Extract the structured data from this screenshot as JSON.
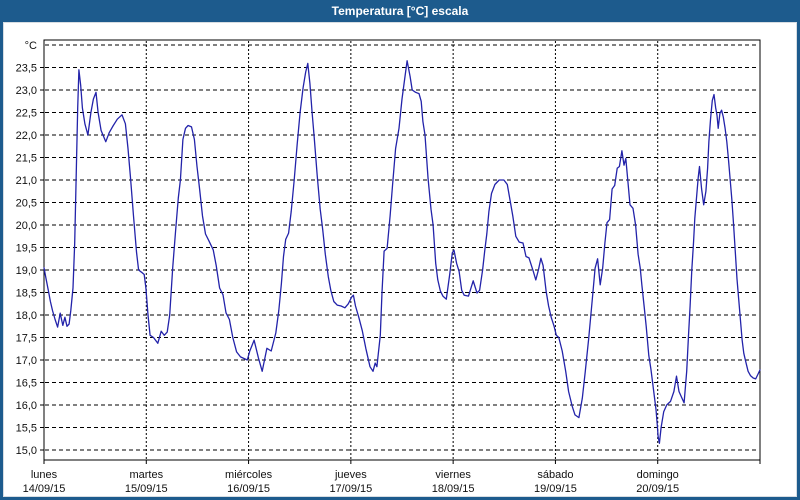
{
  "window": {
    "title": "Temperatura [°C] escala"
  },
  "colors": {
    "titlebar_bg": "#1d5b8d",
    "titlebar_text": "#ffffff",
    "panel_bg": "#ffffff",
    "frame": "#000000",
    "grid": "#000000",
    "axis_text": "#111111",
    "line": "#2323aa"
  },
  "chart_data": {
    "type": "line",
    "title": "Temperatura [°C] escala",
    "y_unit_label": "°C",
    "ylabel": "",
    "xlabel": "",
    "ylim": [
      14.8,
      24.1
    ],
    "y_gridlines": [
      24.0,
      23.5,
      23.0,
      22.5,
      22.0,
      21.5,
      21.0,
      20.5,
      20.0,
      19.5,
      19.0,
      18.5,
      18.0,
      17.5,
      17.0,
      16.5,
      16.0,
      15.5,
      15.0
    ],
    "y_ticks": [
      {
        "value": 23.5,
        "label": "23,5"
      },
      {
        "value": 23.0,
        "label": "23,0"
      },
      {
        "value": 22.5,
        "label": "22,5"
      },
      {
        "value": 22.0,
        "label": "22,0"
      },
      {
        "value": 21.5,
        "label": "21,5"
      },
      {
        "value": 21.0,
        "label": "21,0"
      },
      {
        "value": 20.5,
        "label": "20,5"
      },
      {
        "value": 20.0,
        "label": "20,0"
      },
      {
        "value": 19.5,
        "label": "19,5"
      },
      {
        "value": 19.0,
        "label": "19,0"
      },
      {
        "value": 18.5,
        "label": "18,5"
      },
      {
        "value": 18.0,
        "label": "18,0"
      },
      {
        "value": 17.5,
        "label": "17,5"
      },
      {
        "value": 17.0,
        "label": "17,0"
      },
      {
        "value": 16.5,
        "label": "16,5"
      },
      {
        "value": 16.0,
        "label": "16,0"
      },
      {
        "value": 15.5,
        "label": "15,5"
      },
      {
        "value": 15.0,
        "label": "15,0"
      }
    ],
    "x_days": [
      {
        "name": "lunes",
        "date": "14/09/15"
      },
      {
        "name": "martes",
        "date": "15/09/15"
      },
      {
        "name": "miércoles",
        "date": "16/09/15"
      },
      {
        "name": "jueves",
        "date": "17/09/15"
      },
      {
        "name": "viernes",
        "date": "18/09/15"
      },
      {
        "name": "sábado",
        "date": "19/09/15"
      },
      {
        "name": "domingo",
        "date": "20/09/15"
      }
    ],
    "x_hours_range": [
      0,
      168
    ],
    "grid": "dashed",
    "legend": "none",
    "series": [
      {
        "name": "Temperatura",
        "points": [
          [
            0,
            19.05
          ],
          [
            0.5,
            18.8
          ],
          [
            1,
            18.55
          ],
          [
            1.5,
            18.3
          ],
          [
            2,
            18.1
          ],
          [
            2.6,
            17.9
          ],
          [
            3.2,
            17.73
          ],
          [
            3.8,
            18.04
          ],
          [
            4.4,
            17.77
          ],
          [
            4.9,
            17.95
          ],
          [
            5.4,
            17.75
          ],
          [
            5.9,
            17.8
          ],
          [
            6.3,
            18.1
          ],
          [
            6.8,
            18.6
          ],
          [
            7.2,
            19.6
          ],
          [
            7.6,
            21.3
          ],
          [
            7.9,
            22.6
          ],
          [
            8.2,
            23.45
          ],
          [
            8.6,
            23.1
          ],
          [
            9,
            22.6
          ],
          [
            9.6,
            22.25
          ],
          [
            10.3,
            22.0
          ],
          [
            11,
            22.5
          ],
          [
            11.6,
            22.8
          ],
          [
            12.2,
            22.95
          ],
          [
            12.7,
            22.5
          ],
          [
            13.4,
            22.1
          ],
          [
            14.5,
            21.85
          ],
          [
            15.3,
            22.05
          ],
          [
            16.2,
            22.2
          ],
          [
            17.2,
            22.35
          ],
          [
            18.3,
            22.45
          ],
          [
            19.1,
            22.25
          ],
          [
            19.7,
            21.7
          ],
          [
            20.3,
            21.05
          ],
          [
            21,
            20.2
          ],
          [
            21.7,
            19.4
          ],
          [
            22.2,
            19.0
          ],
          [
            22.9,
            18.95
          ],
          [
            23.5,
            18.9
          ],
          [
            23.9,
            18.6
          ],
          [
            24.4,
            18.0
          ],
          [
            24.9,
            17.55
          ],
          [
            25.7,
            17.5
          ],
          [
            26.7,
            17.37
          ],
          [
            27.5,
            17.64
          ],
          [
            28.2,
            17.55
          ],
          [
            28.9,
            17.62
          ],
          [
            29.5,
            18.0
          ],
          [
            30.2,
            19.05
          ],
          [
            30.9,
            19.9
          ],
          [
            31.5,
            20.6
          ],
          [
            32,
            21.0
          ],
          [
            32.6,
            21.9
          ],
          [
            33.2,
            22.15
          ],
          [
            33.8,
            22.21
          ],
          [
            34.6,
            22.18
          ],
          [
            35.3,
            21.9
          ],
          [
            35.9,
            21.3
          ],
          [
            36.5,
            20.8
          ],
          [
            37.2,
            20.2
          ],
          [
            37.9,
            19.8
          ],
          [
            38.7,
            19.65
          ],
          [
            39.7,
            19.45
          ],
          [
            40.4,
            19.1
          ],
          [
            41.2,
            18.6
          ],
          [
            42,
            18.45
          ],
          [
            42.7,
            18.05
          ],
          [
            43.5,
            17.9
          ],
          [
            44.3,
            17.5
          ],
          [
            45.2,
            17.18
          ],
          [
            46.1,
            17.07
          ],
          [
            47,
            17.03
          ],
          [
            47.7,
            17.0
          ],
          [
            48.3,
            17.2
          ],
          [
            49.3,
            17.44
          ],
          [
            50.3,
            17.05
          ],
          [
            51.2,
            16.75
          ],
          [
            52.3,
            17.26
          ],
          [
            53.3,
            17.2
          ],
          [
            54.4,
            17.6
          ],
          [
            55.1,
            18.1
          ],
          [
            55.7,
            18.7
          ],
          [
            56.2,
            19.3
          ],
          [
            56.7,
            19.68
          ],
          [
            57.4,
            19.82
          ],
          [
            58,
            20.3
          ],
          [
            58.7,
            21.0
          ],
          [
            59.4,
            21.8
          ],
          [
            60.1,
            22.5
          ],
          [
            60.8,
            23.05
          ],
          [
            61.4,
            23.4
          ],
          [
            61.9,
            23.59
          ],
          [
            62.4,
            23.15
          ],
          [
            62.9,
            22.5
          ],
          [
            63.4,
            21.95
          ],
          [
            64.1,
            21.1
          ],
          [
            64.8,
            20.35
          ],
          [
            65.4,
            19.9
          ],
          [
            66,
            19.35
          ],
          [
            66.7,
            18.85
          ],
          [
            67.3,
            18.55
          ],
          [
            68,
            18.3
          ],
          [
            68.8,
            18.22
          ],
          [
            69.7,
            18.2
          ],
          [
            70.6,
            18.16
          ],
          [
            71.4,
            18.25
          ],
          [
            72.2,
            18.4
          ],
          [
            72.6,
            18.44
          ],
          [
            73.1,
            18.2
          ],
          [
            73.9,
            17.93
          ],
          [
            74.7,
            17.64
          ],
          [
            75.5,
            17.26
          ],
          [
            76.5,
            16.85
          ],
          [
            77.2,
            16.75
          ],
          [
            77.7,
            16.93
          ],
          [
            78.1,
            16.85
          ],
          [
            78.9,
            17.55
          ],
          [
            79.3,
            18.5
          ],
          [
            79.8,
            19.42
          ],
          [
            80.5,
            19.48
          ],
          [
            81.2,
            20.2
          ],
          [
            81.8,
            20.9
          ],
          [
            82.5,
            21.7
          ],
          [
            83.3,
            22.15
          ],
          [
            84,
            22.8
          ],
          [
            84.7,
            23.3
          ],
          [
            85.2,
            23.65
          ],
          [
            85.9,
            23.3
          ],
          [
            86.4,
            23.0
          ],
          [
            87.2,
            22.95
          ],
          [
            88,
            22.92
          ],
          [
            88.5,
            22.75
          ],
          [
            88.9,
            22.3
          ],
          [
            89.4,
            22.0
          ],
          [
            90.1,
            21.05
          ],
          [
            90.8,
            20.35
          ],
          [
            91.3,
            20.0
          ],
          [
            91.9,
            19.15
          ],
          [
            92.4,
            18.78
          ],
          [
            93,
            18.53
          ],
          [
            93.6,
            18.42
          ],
          [
            94.4,
            18.35
          ],
          [
            95.2,
            18.9
          ],
          [
            95.8,
            19.38
          ],
          [
            96.2,
            19.44
          ],
          [
            96.8,
            19.15
          ],
          [
            97.4,
            18.97
          ],
          [
            98,
            18.55
          ],
          [
            98.6,
            18.44
          ],
          [
            99.6,
            18.42
          ],
          [
            100.7,
            18.76
          ],
          [
            101.6,
            18.49
          ],
          [
            102.2,
            18.55
          ],
          [
            102.9,
            19.0
          ],
          [
            103.4,
            19.42
          ],
          [
            103.9,
            19.8
          ],
          [
            104.4,
            20.3
          ],
          [
            105,
            20.7
          ],
          [
            105.8,
            20.9
          ],
          [
            106.8,
            21.0
          ],
          [
            107.9,
            21.0
          ],
          [
            108.7,
            20.9
          ],
          [
            109.4,
            20.52
          ],
          [
            110,
            20.2
          ],
          [
            110.7,
            19.75
          ],
          [
            111.5,
            19.62
          ],
          [
            112.4,
            19.6
          ],
          [
            113.1,
            19.3
          ],
          [
            113.8,
            19.27
          ],
          [
            114.8,
            18.97
          ],
          [
            115.4,
            18.78
          ],
          [
            116,
            19.0
          ],
          [
            116.6,
            19.26
          ],
          [
            117.1,
            19.1
          ],
          [
            117.8,
            18.53
          ],
          [
            118.4,
            18.2
          ],
          [
            119,
            17.95
          ],
          [
            119.7,
            17.75
          ],
          [
            120.2,
            17.55
          ],
          [
            120.8,
            17.5
          ],
          [
            121.6,
            17.2
          ],
          [
            122.4,
            16.75
          ],
          [
            123.1,
            16.3
          ],
          [
            123.9,
            15.98
          ],
          [
            124.6,
            15.78
          ],
          [
            125.5,
            15.72
          ],
          [
            126.3,
            16.15
          ],
          [
            127,
            16.75
          ],
          [
            127.8,
            17.48
          ],
          [
            128.6,
            18.3
          ],
          [
            129.3,
            19.04
          ],
          [
            129.9,
            19.25
          ],
          [
            130.5,
            18.67
          ],
          [
            131.1,
            19.05
          ],
          [
            131.6,
            19.6
          ],
          [
            132.1,
            20.05
          ],
          [
            132.7,
            20.12
          ],
          [
            133.3,
            20.8
          ],
          [
            133.9,
            20.88
          ],
          [
            134.5,
            21.26
          ],
          [
            135,
            21.3
          ],
          [
            135.6,
            21.65
          ],
          [
            136.1,
            21.33
          ],
          [
            136.5,
            21.48
          ],
          [
            137,
            20.97
          ],
          [
            137.5,
            20.45
          ],
          [
            138.2,
            20.37
          ],
          [
            138.8,
            20.0
          ],
          [
            139.4,
            19.35
          ],
          [
            139.9,
            19.05
          ],
          [
            140.3,
            18.66
          ],
          [
            140.8,
            18.2
          ],
          [
            141.3,
            17.75
          ],
          [
            141.9,
            17.1
          ],
          [
            142.4,
            16.8
          ],
          [
            142.8,
            16.5
          ],
          [
            143.2,
            16.2
          ],
          [
            143.6,
            15.9
          ],
          [
            143.9,
            15.55
          ],
          [
            144.1,
            15.3
          ],
          [
            144.4,
            15.15
          ],
          [
            144.8,
            15.5
          ],
          [
            145.4,
            15.85
          ],
          [
            146.1,
            16.0
          ],
          [
            147,
            16.08
          ],
          [
            147.8,
            16.3
          ],
          [
            148.4,
            16.64
          ],
          [
            149,
            16.3
          ],
          [
            149.7,
            16.15
          ],
          [
            150.2,
            16.05
          ],
          [
            150.8,
            16.75
          ],
          [
            151.2,
            17.5
          ],
          [
            151.6,
            18.2
          ],
          [
            152,
            19.0
          ],
          [
            152.4,
            19.6
          ],
          [
            152.7,
            20.15
          ],
          [
            153.1,
            20.6
          ],
          [
            153.5,
            21.05
          ],
          [
            153.8,
            21.3
          ],
          [
            154.3,
            20.8
          ],
          [
            154.8,
            20.45
          ],
          [
            155.3,
            20.75
          ],
          [
            155.7,
            21.26
          ],
          [
            156,
            21.86
          ],
          [
            156.4,
            22.37
          ],
          [
            156.8,
            22.77
          ],
          [
            157.2,
            22.9
          ],
          [
            157.6,
            22.6
          ],
          [
            157.9,
            22.44
          ],
          [
            158.2,
            22.15
          ],
          [
            158.6,
            22.48
          ],
          [
            159,
            22.55
          ],
          [
            159.4,
            22.4
          ],
          [
            159.8,
            22.15
          ],
          [
            160.2,
            21.85
          ],
          [
            160.6,
            21.45
          ],
          [
            161,
            21.0
          ],
          [
            161.4,
            20.55
          ],
          [
            161.8,
            20.0
          ],
          [
            162.2,
            19.4
          ],
          [
            162.6,
            18.8
          ],
          [
            163,
            18.35
          ],
          [
            163.4,
            17.9
          ],
          [
            163.8,
            17.45
          ],
          [
            164.2,
            17.15
          ],
          [
            164.7,
            16.95
          ],
          [
            165.2,
            16.75
          ],
          [
            165.8,
            16.65
          ],
          [
            166.4,
            16.6
          ],
          [
            167,
            16.58
          ],
          [
            167.5,
            16.68
          ],
          [
            168,
            16.78
          ]
        ]
      }
    ]
  }
}
